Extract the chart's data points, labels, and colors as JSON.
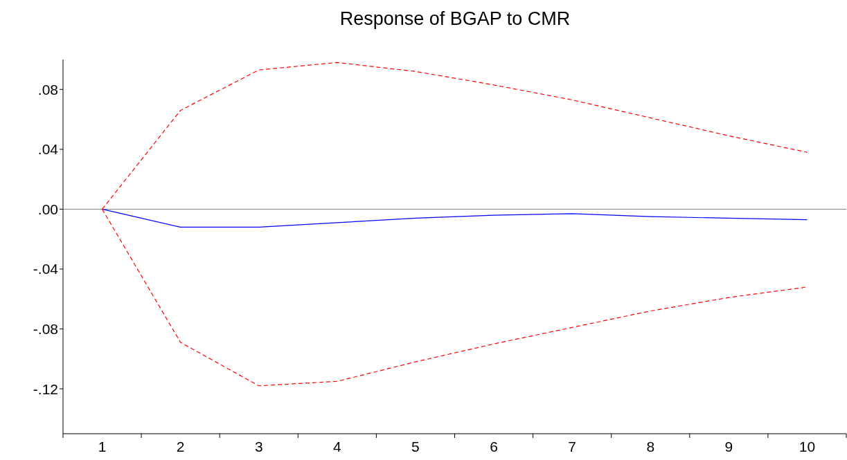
{
  "chart_data": {
    "type": "line",
    "title": "Response of BGAP to CMR",
    "categories": [
      "1",
      "2",
      "3",
      "4",
      "5",
      "6",
      "7",
      "8",
      "9",
      "10"
    ],
    "series": [
      {
        "color": "#0000ff",
        "line_style": "solid",
        "values": [
          0,
          -0.012,
          -0.012,
          -0.009,
          -0.006,
          -0.004,
          -0.003,
          -0.005,
          -0.006,
          -0.007
        ]
      },
      {
        "color": "#ff0000",
        "line_style": "dashed",
        "values": [
          0,
          0.066,
          0.093,
          0.098,
          0.092,
          0.083,
          0.073,
          0.061,
          0.049,
          0.038
        ]
      },
      {
        "color": "#ff0000",
        "line_style": "dashed",
        "values": [
          0,
          -0.089,
          -0.118,
          -0.115,
          -0.102,
          -0.09,
          -0.079,
          -0.068,
          -0.059,
          -0.052
        ]
      }
    ],
    "ylim": [
      -0.15,
      0.1
    ],
    "yticks": [
      {
        "value": 0.08,
        "label": ".08"
      },
      {
        "value": 0.04,
        "label": ".04"
      },
      {
        "value": 0,
        "label": ".00"
      },
      {
        "value": -0.04,
        "label": "-.04"
      },
      {
        "value": -0.08,
        "label": "-.08"
      },
      {
        "value": -0.12,
        "label": "-.12"
      }
    ],
    "ref_lines": [
      {
        "axis": "y",
        "value": 0,
        "color": "#808080"
      }
    ],
    "grid": false,
    "marker": "none"
  }
}
